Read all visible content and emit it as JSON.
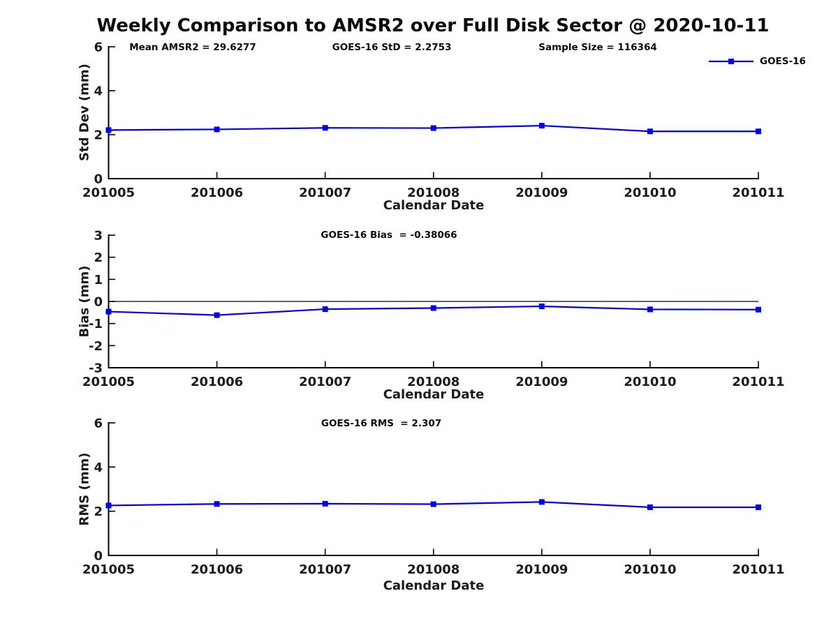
{
  "title": "Weekly Comparison to AMSR2 over Full Disk Sector @ 2020-10-11",
  "colors": {
    "series_blue": "#0000ee",
    "axis_black": "#000000",
    "zero_line_black": "#000000"
  },
  "legend": {
    "series_label": "GOES-16"
  },
  "categories": [
    "201005",
    "201006",
    "201007",
    "201008",
    "201009",
    "201010",
    "201011"
  ],
  "chart_data": [
    {
      "type": "line",
      "name": "std-dev-panel",
      "annotations": [
        {
          "text": "Mean AMSR2 = 29.6277"
        },
        {
          "text": "GOES-16 StD = 2.2753"
        },
        {
          "text": "Sample Size = 116364"
        }
      ],
      "ylabel": "Std Dev (mm)",
      "xlabel": "Calendar Date",
      "categories": [
        "201005",
        "201006",
        "201007",
        "201008",
        "201009",
        "201010",
        "201011"
      ],
      "series": [
        {
          "name": "GOES-16",
          "values": [
            2.21,
            2.24,
            2.31,
            2.3,
            2.41,
            2.15,
            2.15
          ]
        }
      ],
      "ylim": [
        0,
        6
      ],
      "yticks": [
        0,
        2,
        4,
        6
      ],
      "zero_line": false,
      "legend_position": "top-right"
    },
    {
      "type": "line",
      "name": "bias-panel",
      "annotations": [
        {
          "text": "GOES-16 Bias  = -0.38066"
        }
      ],
      "ylabel": "Bias (mm)",
      "xlabel": "Calendar Date",
      "categories": [
        "201005",
        "201006",
        "201007",
        "201008",
        "201009",
        "201010",
        "201011"
      ],
      "series": [
        {
          "name": "GOES-16",
          "values": [
            -0.46,
            -0.62,
            -0.35,
            -0.3,
            -0.22,
            -0.36,
            -0.37
          ]
        }
      ],
      "ylim": [
        -3,
        3
      ],
      "yticks": [
        -3,
        -2,
        -1,
        0,
        1,
        2,
        3
      ],
      "zero_line": true
    },
    {
      "type": "line",
      "name": "rms-panel",
      "annotations": [
        {
          "text": "GOES-16 RMS  = 2.307"
        }
      ],
      "ylabel": "RMS (mm)",
      "xlabel": "Calendar Date",
      "categories": [
        "201005",
        "201006",
        "201007",
        "201008",
        "201009",
        "201010",
        "201011"
      ],
      "series": [
        {
          "name": "GOES-16",
          "values": [
            2.26,
            2.33,
            2.34,
            2.32,
            2.42,
            2.18,
            2.18
          ]
        }
      ],
      "ylim": [
        0,
        6
      ],
      "yticks": [
        0,
        2,
        4,
        6
      ],
      "zero_line": false
    }
  ]
}
